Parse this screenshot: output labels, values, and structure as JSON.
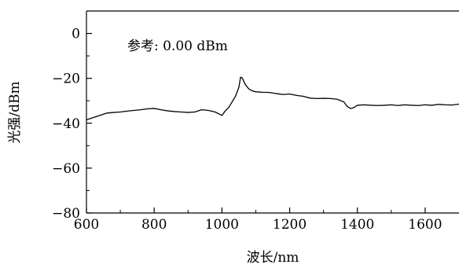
{
  "chart_data": {
    "type": "line",
    "title": "",
    "xlabel": "波长/nm",
    "ylabel": "光强/dBm",
    "annotation": "参考: 0.00 dBm",
    "xlim": [
      600,
      1700
    ],
    "ylim": [
      -80,
      10
    ],
    "x_ticks": [
      600,
      800,
      1000,
      1200,
      1400,
      1600
    ],
    "x_tick_labels": [
      "600",
      "800",
      "1000",
      "1200",
      "1400",
      "1600"
    ],
    "y_ticks": [
      0,
      -20,
      -40,
      -60,
      -80
    ],
    "y_tick_labels": [
      "0",
      "−20",
      "−40",
      "−60",
      "−80"
    ],
    "grid": false,
    "legend": "none",
    "colors": {
      "line": "#000000",
      "axis": "#000000",
      "background": "#ffffff"
    },
    "series": [
      {
        "x": [
          600,
          620,
          640,
          660,
          680,
          700,
          720,
          740,
          760,
          780,
          800,
          820,
          840,
          860,
          880,
          900,
          920,
          940,
          960,
          980,
          1000,
          1010,
          1020,
          1030,
          1040,
          1050,
          1055,
          1060,
          1065,
          1070,
          1080,
          1090,
          1100,
          1120,
          1140,
          1160,
          1180,
          1200,
          1220,
          1240,
          1260,
          1280,
          1300,
          1320,
          1340,
          1360,
          1370,
          1380,
          1390,
          1400,
          1420,
          1440,
          1460,
          1480,
          1500,
          1520,
          1540,
          1560,
          1580,
          1600,
          1620,
          1640,
          1660,
          1680,
          1700
        ],
        "y": [
          -38.5,
          -37.5,
          -36.5,
          -35.5,
          -35.2,
          -35.0,
          -34.6,
          -34.3,
          -34.0,
          -33.6,
          -33.4,
          -34.0,
          -34.5,
          -34.8,
          -35.0,
          -35.2,
          -35.0,
          -34.0,
          -34.3,
          -35.0,
          -36.5,
          -34.5,
          -33.0,
          -30.5,
          -28.0,
          -24.0,
          -19.5,
          -19.8,
          -21.5,
          -23.0,
          -24.8,
          -25.6,
          -26.0,
          -26.2,
          -26.3,
          -26.8,
          -27.2,
          -27.0,
          -27.6,
          -28.0,
          -28.8,
          -29.0,
          -28.9,
          -29.0,
          -29.3,
          -30.5,
          -32.5,
          -33.5,
          -33.0,
          -32.0,
          -31.8,
          -32.0,
          -32.1,
          -32.0,
          -31.8,
          -32.1,
          -31.8,
          -32.0,
          -32.1,
          -31.8,
          -32.0,
          -31.6,
          -31.8,
          -31.9,
          -31.5
        ]
      }
    ]
  }
}
